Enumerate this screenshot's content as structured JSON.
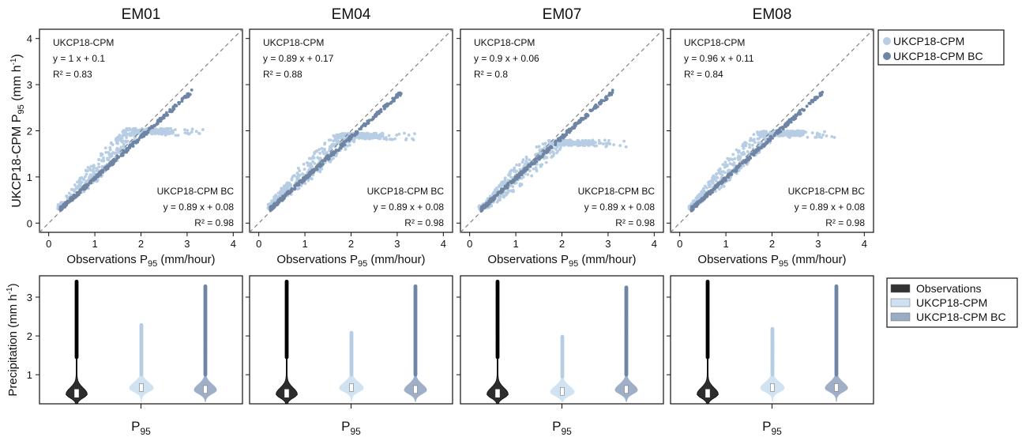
{
  "figure": {
    "top_ylabel": "UKCP18-CPM P",
    "top_ylabel_sub": "95",
    "top_ylabel_unit": " (mm h",
    "top_ylabel_sup": "-1",
    "top_ylabel_close": ")",
    "bottom_ylabel": "Precipitation (mm h",
    "bottom_ylabel_sup": "-1",
    "bottom_ylabel_close": ")",
    "xlabel_main": "Observations P",
    "xlabel_sub": "95",
    "xlabel_unit": " (mm/hour)",
    "violin_xlabel": "P",
    "violin_xlabel_sub": "95"
  },
  "colors": {
    "cpm": "#b6cde3",
    "cpm_bc": "#6e85a6",
    "cpm_violin": "#cfe0f0",
    "cpm_bc_violin": "#9aabc4",
    "obs": "#000000",
    "diag": "#808080"
  },
  "legend_top": [
    {
      "label": "UKCP18-CPM",
      "color": "#b6cde3"
    },
    {
      "label": "UKCP18-CPM BC",
      "color": "#6e85a6"
    }
  ],
  "legend_bottom": [
    {
      "label": "Observations",
      "color": "#333333"
    },
    {
      "label": "UKCP18-CPM",
      "color": "#cfe0f0"
    },
    {
      "label": "UKCP18-CPM BC",
      "color": "#9aabc4"
    }
  ],
  "chart_data": [
    {
      "type": "scatter",
      "title": "EM01",
      "xlim": [
        -0.2,
        4.2
      ],
      "ylim": [
        -0.2,
        4.2
      ],
      "xticks": [
        "0",
        "1",
        "2",
        "3",
        "4"
      ],
      "yticks": [
        "0",
        "1",
        "2",
        "3",
        "4"
      ],
      "cpm_stats": {
        "name": "UKCP18-CPM",
        "eq": "y =  1 x +  0.1",
        "r2": "R² =  0.83"
      },
      "bc_stats": {
        "name": "UKCP18-CPM BC",
        "eq": "y =  0.89 x +  0.08",
        "r2": "R² =  0.98"
      },
      "series": [
        {
          "name": "UKCP18-CPM",
          "slope": 1.0,
          "intercept": 0.1,
          "plateau": 2.05,
          "xmax": 3.4
        },
        {
          "name": "UKCP18-CPM BC",
          "slope": 0.89,
          "intercept": 0.08,
          "xmax": 3.1
        }
      ]
    },
    {
      "type": "scatter",
      "title": "EM04",
      "xlim": [
        -0.2,
        4.2
      ],
      "ylim": [
        -0.2,
        4.2
      ],
      "xticks": [
        "0",
        "1",
        "2",
        "3",
        "4"
      ],
      "yticks": [
        "0",
        "1",
        "2",
        "3",
        "4"
      ],
      "cpm_stats": {
        "name": "UKCP18-CPM",
        "eq": "y =  0.89 x +  0.17",
        "r2": "R² =  0.88"
      },
      "bc_stats": {
        "name": "UKCP18-CPM BC",
        "eq": "y =  0.89 x +  0.08",
        "r2": "R² =  0.98"
      },
      "series": [
        {
          "name": "UKCP18-CPM",
          "slope": 0.89,
          "intercept": 0.17,
          "plateau": 1.95,
          "xmax": 3.4
        },
        {
          "name": "UKCP18-CPM BC",
          "slope": 0.89,
          "intercept": 0.08,
          "xmax": 3.1
        }
      ]
    },
    {
      "type": "scatter",
      "title": "EM07",
      "xlim": [
        -0.2,
        4.2
      ],
      "ylim": [
        -0.2,
        4.2
      ],
      "xticks": [
        "0",
        "1",
        "2",
        "3",
        "4"
      ],
      "yticks": [
        "0",
        "1",
        "2",
        "3",
        "4"
      ],
      "cpm_stats": {
        "name": "UKCP18-CPM",
        "eq": "y =  0.9 x +  0.06",
        "r2": "R² =  0.8"
      },
      "bc_stats": {
        "name": "UKCP18-CPM BC",
        "eq": "y =  0.89 x +  0.08",
        "r2": "R² =  0.98"
      },
      "series": [
        {
          "name": "UKCP18-CPM",
          "slope": 0.9,
          "intercept": 0.06,
          "plateau": 1.8,
          "xmax": 3.4
        },
        {
          "name": "UKCP18-CPM BC",
          "slope": 0.89,
          "intercept": 0.08,
          "xmax": 3.1
        }
      ]
    },
    {
      "type": "scatter",
      "title": "EM08",
      "xlim": [
        -0.2,
        4.2
      ],
      "ylim": [
        -0.2,
        4.2
      ],
      "xticks": [
        "0",
        "1",
        "2",
        "3",
        "4"
      ],
      "yticks": [
        "0",
        "1",
        "2",
        "3",
        "4"
      ],
      "cpm_stats": {
        "name": "UKCP18-CPM",
        "eq": "y =  0.96 x +  0.11",
        "r2": "R² =  0.84"
      },
      "bc_stats": {
        "name": "UKCP18-CPM BC",
        "eq": "y =  0.89 x +  0.08",
        "r2": "R² =  0.98"
      },
      "series": [
        {
          "name": "UKCP18-CPM",
          "slope": 0.96,
          "intercept": 0.11,
          "plateau": 2.0,
          "xmax": 3.4
        },
        {
          "name": "UKCP18-CPM BC",
          "slope": 0.89,
          "intercept": 0.08,
          "xmax": 3.1
        }
      ]
    },
    {
      "type": "violin",
      "panel": "EM01",
      "ylim": [
        0.25,
        3.55
      ],
      "yticks": [
        "1",
        "2",
        "3"
      ],
      "series": [
        {
          "name": "Observations",
          "median": 0.5,
          "min": 0.25,
          "whisker": 1.45,
          "max": 3.4
        },
        {
          "name": "UKCP18-CPM",
          "median": 0.65,
          "min": 0.3,
          "whisker": 1.0,
          "max": 2.28
        },
        {
          "name": "UKCP18-CPM BC",
          "median": 0.6,
          "min": 0.3,
          "whisker": 1.0,
          "max": 3.28
        }
      ]
    },
    {
      "type": "violin",
      "panel": "EM04",
      "ylim": [
        0.25,
        3.55
      ],
      "yticks": [
        "1",
        "2",
        "3"
      ],
      "series": [
        {
          "name": "Observations",
          "median": 0.5,
          "min": 0.25,
          "whisker": 1.45,
          "max": 3.4
        },
        {
          "name": "UKCP18-CPM",
          "median": 0.65,
          "min": 0.3,
          "whisker": 1.0,
          "max": 2.08
        },
        {
          "name": "UKCP18-CPM BC",
          "median": 0.6,
          "min": 0.3,
          "whisker": 1.0,
          "max": 3.28
        }
      ]
    },
    {
      "type": "violin",
      "panel": "EM07",
      "ylim": [
        0.25,
        3.55
      ],
      "yticks": [
        "1",
        "2",
        "3"
      ],
      "series": [
        {
          "name": "Observations",
          "median": 0.5,
          "min": 0.25,
          "whisker": 1.45,
          "max": 3.4
        },
        {
          "name": "UKCP18-CPM",
          "median": 0.55,
          "min": 0.3,
          "whisker": 0.95,
          "max": 1.98
        },
        {
          "name": "UKCP18-CPM BC",
          "median": 0.6,
          "min": 0.3,
          "whisker": 1.0,
          "max": 3.25
        }
      ]
    },
    {
      "type": "violin",
      "panel": "EM08",
      "ylim": [
        0.25,
        3.55
      ],
      "yticks": [
        "1",
        "2",
        "3"
      ],
      "series": [
        {
          "name": "Observations",
          "median": 0.5,
          "min": 0.25,
          "whisker": 1.45,
          "max": 3.4
        },
        {
          "name": "UKCP18-CPM",
          "median": 0.65,
          "min": 0.3,
          "whisker": 1.0,
          "max": 2.18
        },
        {
          "name": "UKCP18-CPM BC",
          "median": 0.65,
          "min": 0.3,
          "whisker": 1.0,
          "max": 3.28
        }
      ]
    }
  ]
}
